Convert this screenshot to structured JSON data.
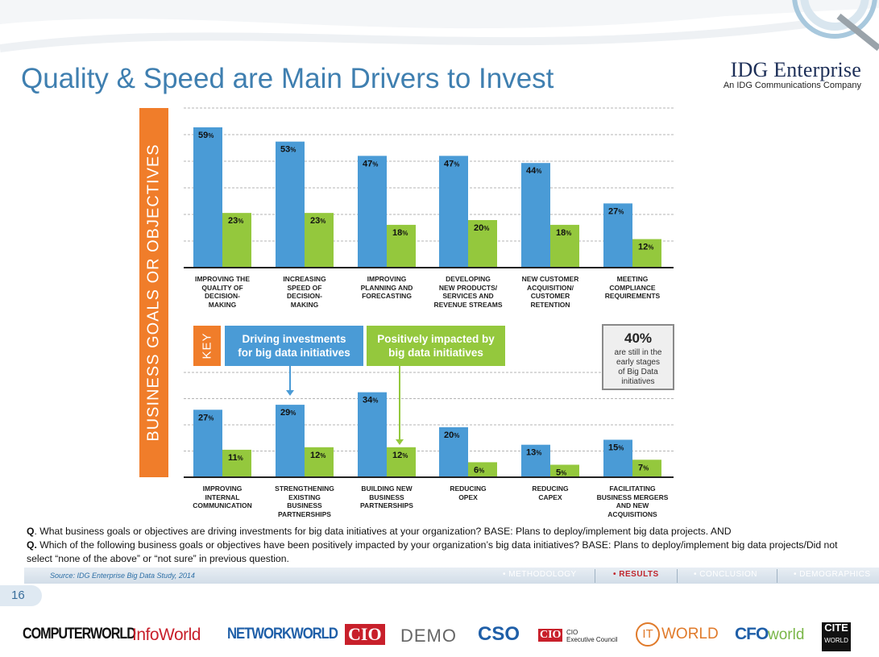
{
  "slide": {
    "title": "Quality & Speed are Main Drivers to Invest",
    "logo_main": "IDG Enterprise",
    "logo_sub": "An IDG Communications Company",
    "page_number": "16",
    "vertical_label": "BUSINESS GOALS OR OBJECTIVES"
  },
  "colors": {
    "blue": "#4a9bd6",
    "green": "#94c83d",
    "orange": "#f07d2a",
    "title": "#3f7fb0"
  },
  "key": {
    "tag": "KEY",
    "blue_label_1": "Driving investments",
    "blue_label_2": "for big data initiatives",
    "green_label_1": "Positively impacted by",
    "green_label_2": "big data initiatives"
  },
  "callout": {
    "big": "40%",
    "line1": "are still in the",
    "line2": "early stages",
    "line3": "of Big Data",
    "line4": "initiatives"
  },
  "chart_data": [
    {
      "type": "bar",
      "categories": [
        "Improving the quality of decision-making",
        "Increasing speed of decision-making",
        "Improving planning and forecasting",
        "Developing new products/ services and revenue streams",
        "New customer acquisition/ customer retention",
        "Meeting compliance requirements"
      ],
      "category_lines": [
        [
          "IMPROVING THE",
          "QUALITY OF",
          "DECISION-",
          "MAKING"
        ],
        [
          "INCREASING",
          "SPEED OF",
          "DECISION-",
          "MAKING"
        ],
        [
          "IMPROVING",
          "PLANNING AND",
          "FORECASTING"
        ],
        [
          "DEVELOPING",
          "NEW PRODUCTS/",
          "SERVICES AND",
          "REVENUE STREAMS"
        ],
        [
          "NEW CUSTOMER",
          "ACQUISITION/",
          "CUSTOMER",
          "RETENTION"
        ],
        [
          "MEETING",
          "COMPLIANCE",
          "REQUIREMENTS"
        ]
      ],
      "series": [
        {
          "values": [
            59,
            53,
            47,
            47,
            44,
            27
          ]
        },
        {
          "values": [
            23,
            23,
            18,
            20,
            18,
            12
          ]
        }
      ],
      "ylim": [
        0,
        60
      ],
      "grid": true
    },
    {
      "type": "bar",
      "categories": [
        "Improving internal communication",
        "Strengthening existing business partnerships",
        "Building new business partnerships",
        "Reducing OPEX",
        "Reducing CAPEX",
        "Facilitating business mergers and new acquisitions"
      ],
      "category_lines": [
        [
          "IMPROVING",
          "INTERNAL",
          "COMMUNICATION"
        ],
        [
          "STRENGTHENING",
          "EXISTING",
          "BUSINESS",
          "PARTNERSHIPS"
        ],
        [
          "BUILDING NEW",
          "BUSINESS",
          "PARTNERSHIPS"
        ],
        [
          "REDUCING",
          "OPEX"
        ],
        [
          "REDUCING",
          "CAPEX"
        ],
        [
          "FACILITATING",
          "BUSINESS MERGERS",
          "AND NEW",
          "ACQUISITIONS"
        ]
      ],
      "series": [
        {
          "values": [
            27,
            29,
            34,
            20,
            13,
            15
          ]
        },
        {
          "values": [
            11,
            12,
            12,
            6,
            5,
            7
          ]
        }
      ],
      "ylim": [
        0,
        40
      ],
      "grid": true
    }
  ],
  "question": {
    "q1_prefix": "Q",
    "q1": ". What business goals or objectives are driving investments for big data initiatives at your organization? BASE: Plans to deploy/implement big data projects. AND",
    "q2_prefix": "Q.",
    "q2": " Which of the following business goals or objectives have been positively impacted by your organization’s big data initiatives? BASE: Plans to deploy/implement big data projects/Did not select “none of the above” or “not sure” in previous question."
  },
  "footer": {
    "source": "Source: IDG Enterprise Big Data Study, 2014",
    "nav": [
      "• METHODOLOGY",
      "• RESULTS",
      "• CONCLUSION",
      "• DEMOGRAPHICS"
    ],
    "brands": [
      "COMPUTERWORLD",
      "InfoWorld",
      "NETWORKWORLD",
      "CIO",
      "DEMO",
      "CSO",
      "CIO",
      "CIO",
      "Executive Council",
      "IT",
      "WORLD",
      "CFO",
      "world",
      "CITE",
      "WORLD"
    ]
  }
}
